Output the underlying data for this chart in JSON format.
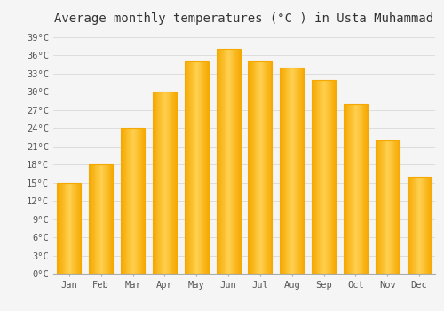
{
  "title": "Average monthly temperatures (°C ) in Usta Muhammad",
  "months": [
    "Jan",
    "Feb",
    "Mar",
    "Apr",
    "May",
    "Jun",
    "Jul",
    "Aug",
    "Sep",
    "Oct",
    "Nov",
    "Dec"
  ],
  "temperatures": [
    15,
    18,
    24,
    30,
    35,
    37,
    35,
    34,
    32,
    28,
    22,
    16
  ],
  "bar_color_center": "#FFD050",
  "bar_color_edge": "#F5A800",
  "background_color": "#f5f5f5",
  "plot_bg_color": "#f5f5f5",
  "grid_color": "#dddddd",
  "yticks": [
    0,
    3,
    6,
    9,
    12,
    15,
    18,
    21,
    24,
    27,
    30,
    33,
    36,
    39
  ],
  "ylim": [
    0,
    40.5
  ],
  "title_fontsize": 10,
  "tick_fontsize": 7.5,
  "font_family": "monospace",
  "bar_width": 0.75,
  "title_color": "#333333",
  "tick_color": "#555555"
}
